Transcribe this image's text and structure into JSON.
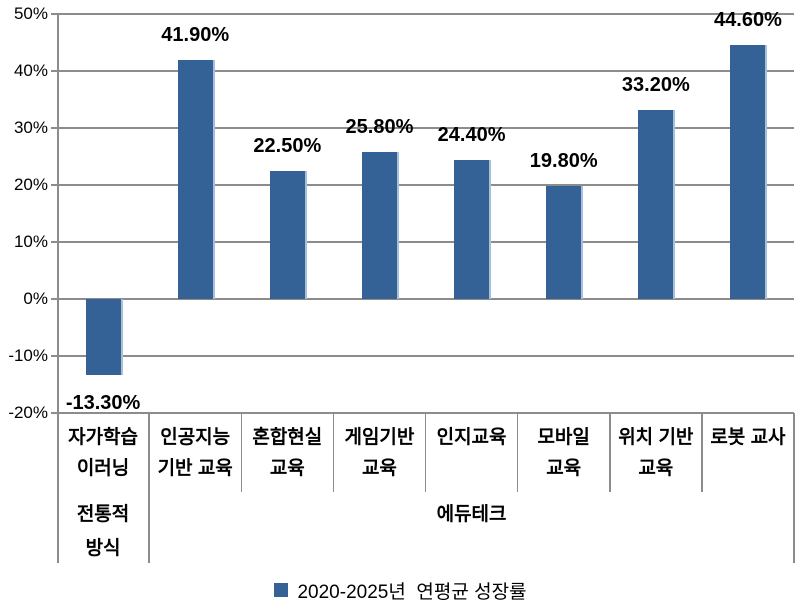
{
  "chart_data": {
    "type": "bar",
    "title": "",
    "xlabel": "",
    "ylabel": "",
    "categories": [
      "자가학습 이러닝",
      "인공지능 기반 교육",
      "혼합현실 교육",
      "게임기반 교육",
      "인지교육",
      "모바일 교육",
      "위치 기반 교육",
      "로봇 교사"
    ],
    "category_label_lines": [
      [
        "자가학습",
        "이러닝"
      ],
      [
        "인공지능",
        "기반 교육"
      ],
      [
        "혼합현실",
        "교육"
      ],
      [
        "게임기반",
        "교육"
      ],
      [
        "인지교육"
      ],
      [
        "모바일",
        "교육"
      ],
      [
        "위치 기반",
        "교육"
      ],
      [
        "로봇 교사"
      ]
    ],
    "values": [
      -13.3,
      41.9,
      22.5,
      25.8,
      24.4,
      19.8,
      33.2,
      44.6
    ],
    "data_labels": [
      "-13.30%",
      "41.90%",
      "22.50%",
      "25.80%",
      "24.40%",
      "19.80%",
      "33.20%",
      "44.60%"
    ],
    "groups": [
      {
        "label": "전통적 방식",
        "label_lines": [
          "전통적",
          "방식"
        ],
        "from": 0,
        "to": 0
      },
      {
        "label": "에듀테크",
        "label_lines": [
          "에듀테크"
        ],
        "from": 1,
        "to": 7
      }
    ],
    "legend": [
      "2020-2025년  연평균 성장률"
    ],
    "legend_position": "bottom",
    "yticks": [
      "50%",
      "40%",
      "30%",
      "20%",
      "10%",
      "0%",
      "-10%",
      "-20%"
    ],
    "ylim": [
      -20,
      50
    ],
    "ytick_step": 10,
    "grid": true,
    "colors": {
      "bar_fill": "#346296",
      "bar_edge": "#A9C0DB",
      "axis_and_grid": "#8C8C8C",
      "text": "#000000",
      "background": "#FFFFFF"
    }
  }
}
